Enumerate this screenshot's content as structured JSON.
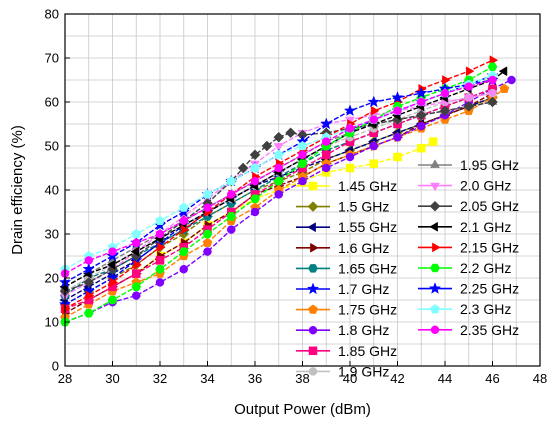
{
  "chart_data": {
    "type": "line",
    "xlabel": "Output Power (dBm)",
    "ylabel": "Drain efficiency (%)",
    "xlim": [
      28,
      48
    ],
    "ylim": [
      0,
      80
    ],
    "xticks": [
      28,
      30,
      32,
      34,
      36,
      38,
      40,
      42,
      44,
      46,
      48
    ],
    "yticks": [
      0,
      10,
      20,
      30,
      40,
      50,
      60,
      70,
      80
    ],
    "grid": true,
    "legend_position": "bottom-right, two columns",
    "series": [
      {
        "name": "1.45 GHz",
        "color": "#ffff00",
        "marker": "square",
        "x": [
          28.0,
          29.0,
          30.0,
          31.0,
          32.0,
          33.0,
          34.0,
          35.0,
          36.0,
          37.0,
          38.0,
          39.0,
          40.0,
          41.0,
          42.0,
          43.0,
          43.5
        ],
        "y": [
          13,
          15,
          18,
          21,
          25,
          28,
          32,
          35,
          38,
          40,
          42,
          44,
          45,
          46,
          47.5,
          49.5,
          51
        ]
      },
      {
        "name": "1.5 GHz",
        "color": "#808000",
        "marker": "diamond",
        "x": [
          28.0,
          29.0,
          30.0,
          31.0,
          32.0,
          33.0,
          34.0,
          35.0,
          36.0,
          37.0,
          38.0,
          39.0,
          40.0,
          41.0,
          42.0,
          43.0,
          44.0,
          45.0,
          46.0
        ],
        "y": [
          14,
          17,
          20,
          23,
          27,
          30,
          34,
          37,
          40,
          42,
          44,
          47,
          49,
          51,
          53,
          55,
          57,
          59,
          61
        ]
      },
      {
        "name": "1.55 GHz",
        "color": "#000080",
        "marker": "triangle-left",
        "x": [
          28.0,
          29.0,
          30.0,
          31.0,
          32.0,
          33.0,
          34.0,
          35.0,
          36.0,
          37.0,
          38.0,
          39.0,
          40.0,
          41.0,
          42.0,
          43.0,
          44.0,
          45.0,
          46.0
        ],
        "y": [
          15,
          18,
          21,
          24,
          28,
          31,
          35,
          38,
          41,
          43,
          45,
          47,
          49,
          51,
          53,
          55,
          57,
          59,
          61
        ]
      },
      {
        "name": "1.6 GHz",
        "color": "#800000",
        "marker": "triangle-right",
        "x": [
          28.0,
          29.0,
          30.0,
          31.0,
          32.0,
          33.0,
          34.0,
          35.0,
          36.0,
          37.0,
          38.0,
          39.0,
          40.0,
          41.0,
          42.0,
          43.0,
          44.0,
          45.0,
          46.0
        ],
        "y": [
          12,
          15,
          18,
          21,
          25,
          28,
          32,
          35,
          39,
          41,
          43,
          46,
          48,
          50,
          52,
          55,
          57,
          59,
          62
        ]
      },
      {
        "name": "1.65 GHz",
        "color": "#008080",
        "marker": "hexagon",
        "x": [
          28.0,
          29.0,
          30.0,
          31.0,
          32.0,
          33.0,
          34.0,
          35.0,
          36.0,
          37.0,
          38.0,
          39.0,
          40.0,
          41.0,
          42.0,
          43.0,
          44.0,
          45.0,
          46.0
        ],
        "y": [
          16,
          20,
          22,
          25,
          28,
          31,
          34,
          37,
          40,
          43,
          46,
          49,
          51,
          53,
          55,
          57,
          59,
          61,
          63
        ]
      },
      {
        "name": "1.7 GHz",
        "color": "#0000ff",
        "marker": "star",
        "x": [
          28.0,
          29.0,
          30.0,
          31.0,
          32.0,
          33.0,
          34.0,
          35.0,
          36.0,
          37.0,
          38.0,
          39.0,
          40.0,
          41.0,
          42.0,
          43.0,
          44.0,
          45.0,
          46.0
        ],
        "y": [
          14,
          17,
          20,
          24,
          28,
          32,
          35,
          38,
          41,
          44,
          47,
          50,
          53,
          56,
          58,
          60,
          62,
          64,
          66
        ]
      },
      {
        "name": "1.75 GHz",
        "color": "#ff8000",
        "marker": "pentagon",
        "x": [
          28.0,
          29.0,
          30.0,
          31.0,
          32.0,
          33.0,
          34.0,
          35.0,
          36.0,
          37.0,
          38.0,
          39.0,
          40.0,
          41.0,
          42.0,
          43.0,
          44.0,
          45.0,
          46.0,
          46.5
        ],
        "y": [
          11,
          14,
          17,
          19,
          21,
          25,
          28,
          33,
          36,
          40,
          43,
          46,
          48,
          50,
          52,
          54,
          56,
          58,
          61,
          63
        ]
      },
      {
        "name": "1.8 GHz",
        "color": "#8000ff",
        "marker": "circle",
        "x": [
          28.0,
          29.0,
          30.0,
          31.0,
          32.0,
          33.0,
          34.0,
          35.0,
          36.0,
          37.0,
          38.0,
          39.0,
          40.0,
          41.0,
          42.0,
          43.0,
          44.0,
          45.0,
          46.0,
          46.8
        ],
        "y": [
          10,
          12,
          14.5,
          16,
          19,
          22,
          26,
          31,
          35,
          39,
          42,
          45,
          47.5,
          50,
          52,
          54.5,
          57,
          60,
          63,
          65
        ]
      },
      {
        "name": "1.85 GHz",
        "color": "#ff0080",
        "marker": "square",
        "x": [
          28.0,
          29.0,
          30.0,
          31.0,
          32.0,
          33.0,
          34.0,
          35.0,
          36.0,
          37.0,
          38.0,
          39.0,
          40.0,
          41.0,
          42.0,
          43.0,
          44.0,
          45.0,
          46.0
        ],
        "y": [
          13,
          15,
          18,
          21,
          24,
          27,
          31,
          35,
          39,
          42,
          45,
          48,
          51,
          53,
          55,
          57,
          59,
          61,
          63
        ]
      },
      {
        "name": "1.9 GHz",
        "color": "#c0c0c0",
        "marker": "circle",
        "x": [
          28.0,
          29.0,
          30.0,
          31.0,
          32.0,
          33.0,
          34.0,
          35.0,
          36.0,
          37.0,
          38.0,
          39.0,
          40.0,
          41.0,
          42.0,
          43.0,
          44.0,
          45.0,
          46.0
        ],
        "y": [
          17,
          20,
          23,
          26,
          29,
          32,
          35,
          38,
          41,
          44,
          47,
          50,
          52,
          54,
          56,
          58,
          60,
          61,
          62
        ]
      },
      {
        "name": "1.95 GHz",
        "color": "#808080",
        "marker": "triangle-up",
        "x": [
          28.0,
          29.0,
          30.0,
          31.0,
          32.0,
          33.0,
          34.0,
          35.0,
          36.0,
          37.0,
          38.0,
          39.0,
          40.0,
          41.0,
          42.0,
          43.0,
          44.0,
          45.0,
          46.0
        ],
        "y": [
          18,
          21,
          24,
          27,
          30,
          33,
          36,
          39,
          42,
          45,
          48,
          51,
          53,
          55,
          56,
          57,
          58,
          59,
          60
        ]
      },
      {
        "name": "2.0 GHz",
        "color": "#ff80ff",
        "marker": "triangle-down",
        "x": [
          28.0,
          29.0,
          30.0,
          31.0,
          32.0,
          33.0,
          34.0,
          35.0,
          36.0,
          37.0,
          38.0,
          39.0,
          40.0,
          41.0,
          42.0,
          43.0,
          44.0,
          45.0,
          46.0
        ],
        "y": [
          16,
          19,
          22,
          26,
          30,
          34,
          38,
          42,
          46,
          50,
          53,
          55,
          56,
          57,
          58,
          59,
          60,
          61,
          62
        ]
      },
      {
        "name": "2.05 GHz",
        "color": "#404040",
        "marker": "diamond",
        "x": [
          28.0,
          29.0,
          30.0,
          31.0,
          32.0,
          33.0,
          34.0,
          35.0,
          35.5,
          36.0,
          36.5,
          37.0,
          37.5,
          38.0,
          39.0,
          40.0,
          41.0,
          42.0,
          43.0,
          44.0,
          45.0,
          46.0
        ],
        "y": [
          17,
          19,
          22,
          25,
          29,
          33,
          37,
          42,
          45,
          48,
          50,
          52,
          53,
          52.5,
          53,
          54,
          55,
          56,
          57,
          58,
          59,
          60
        ]
      },
      {
        "name": "2.1 GHz",
        "color": "#000000",
        "marker": "triangle-left",
        "x": [
          28.0,
          29.0,
          30.0,
          31.0,
          32.0,
          33.0,
          34.0,
          35.0,
          36.0,
          37.0,
          38.0,
          39.0,
          40.0,
          41.0,
          42.0,
          43.0,
          44.0,
          45.0,
          46.0,
          46.5
        ],
        "y": [
          18,
          21,
          23,
          26,
          29,
          32,
          35,
          38,
          41,
          44,
          47,
          50,
          53,
          55,
          57,
          59,
          61,
          63,
          65,
          67
        ]
      },
      {
        "name": "2.15 GHz",
        "color": "#ff0000",
        "marker": "triangle-right",
        "x": [
          28.0,
          29.0,
          30.0,
          31.0,
          32.0,
          33.0,
          34.0,
          35.0,
          36.0,
          37.0,
          38.0,
          39.0,
          40.0,
          41.0,
          42.0,
          43.0,
          44.0,
          45.0,
          46.0
        ],
        "y": [
          13,
          16,
          19,
          23,
          27,
          31,
          35,
          39,
          43,
          46,
          49,
          52,
          55,
          58,
          60,
          63,
          65,
          67,
          69.5
        ]
      },
      {
        "name": "2.2 GHz",
        "color": "#00ff00",
        "marker": "hexagon",
        "x": [
          28.0,
          29.0,
          30.0,
          31.0,
          32.0,
          33.0,
          34.0,
          35.0,
          36.0,
          37.0,
          38.0,
          39.0,
          40.0,
          41.0,
          42.0,
          43.0,
          44.0,
          45.0,
          46.0
        ],
        "y": [
          10,
          12,
          15,
          18,
          22,
          26,
          30,
          34,
          38,
          42,
          46,
          50,
          53,
          56,
          59,
          61,
          63,
          65,
          68
        ]
      },
      {
        "name": "2.25 GHz",
        "color": "#0000ff",
        "marker": "star",
        "x": [
          28.0,
          29.0,
          30.0,
          31.0,
          32.0,
          33.0,
          34.0,
          35.0,
          36.0,
          37.0,
          38.0,
          39.0,
          40.0,
          41.0,
          42.0,
          43.0,
          44.0,
          45.0,
          46.0
        ],
        "y": [
          19,
          22,
          25,
          28,
          32,
          35,
          39,
          42,
          45,
          48,
          51,
          55,
          58,
          60,
          61,
          62,
          63,
          64,
          65
        ]
      },
      {
        "name": "2.3 GHz",
        "color": "#80ffff",
        "marker": "pentagon",
        "x": [
          28.0,
          29.0,
          30.0,
          31.0,
          32.0,
          33.0,
          34.0,
          35.0,
          36.0,
          37.0,
          38.0,
          39.0,
          40.0,
          41.0,
          42.0,
          43.0,
          44.0,
          45.0,
          46.0
        ],
        "y": [
          22,
          25,
          27,
          30,
          33,
          36,
          39,
          42,
          45,
          48,
          50,
          52,
          54,
          56,
          58,
          60,
          62,
          64,
          66
        ]
      },
      {
        "name": "2.35 GHz",
        "color": "#ff00ff",
        "marker": "circle",
        "x": [
          28.0,
          29.0,
          30.0,
          31.0,
          32.0,
          33.0,
          34.0,
          35.0,
          36.0,
          37.0,
          38.0,
          39.0,
          40.0,
          41.0,
          42.0,
          43.0,
          44.0,
          45.0,
          46.0
        ],
        "y": [
          21,
          24,
          26,
          28,
          30,
          33,
          36,
          39,
          42,
          45,
          48,
          51,
          54,
          56,
          58,
          60,
          62,
          63.5,
          65
        ]
      }
    ]
  }
}
